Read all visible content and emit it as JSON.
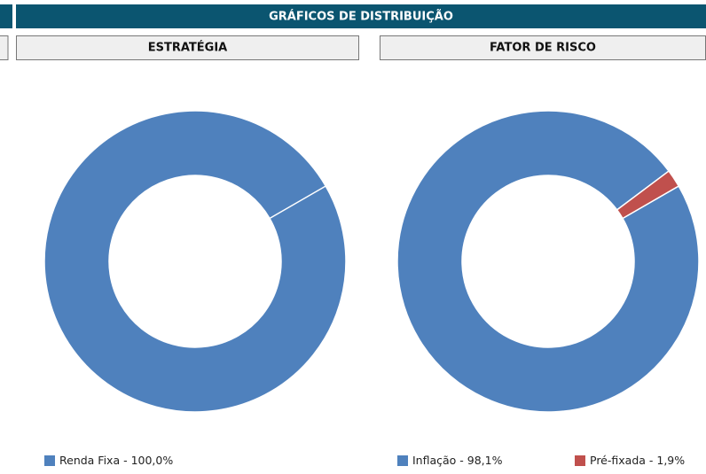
{
  "header": {
    "title": "GRÁFICOS DE DISTRIBUIÇÃO"
  },
  "chart_data": [
    {
      "type": "donut",
      "title": "ESTRATÉGIA",
      "categories": [
        "Renda Fixa - 100,0%"
      ],
      "values": [
        100
      ],
      "colors": [
        "#4f81bd"
      ]
    },
    {
      "type": "donut",
      "title": "FATOR DE RISCO",
      "categories": [
        "Inflação - 98,1%",
        "Pré-fixada - 1,9%"
      ],
      "values": [
        98.1,
        1.9
      ],
      "colors": [
        "#4f81bd",
        "#c0504d"
      ]
    }
  ]
}
